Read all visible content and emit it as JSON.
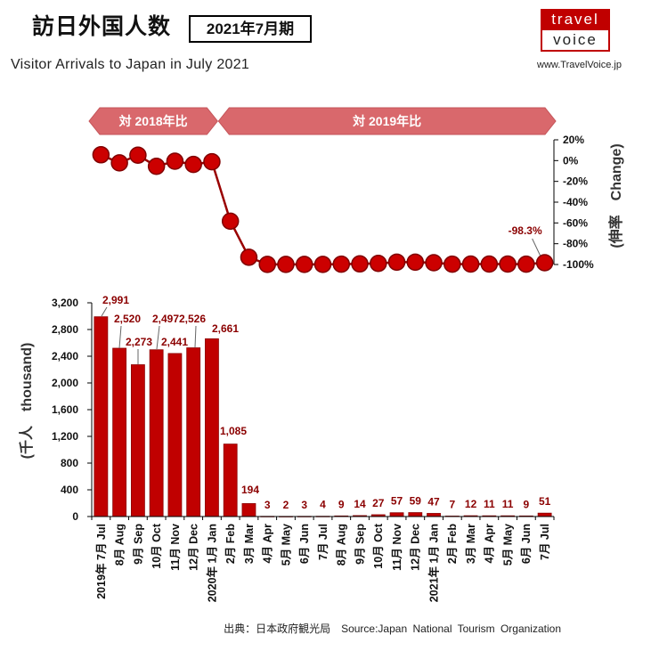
{
  "header": {
    "title": "訪日外国人数",
    "period_badge": "2021年7月期",
    "subtitle": "Visitor Arrivals to Japan in July 2021",
    "site_url": "www.TravelVoice.jp"
  },
  "logo": {
    "top": "travel",
    "bottom": "voice",
    "icon": "travel-voice-logo"
  },
  "colors": {
    "bar": "#c00000",
    "bar_border": "#8b0000",
    "line": "#990000",
    "marker": "#cc0000",
    "marker_border": "#800000",
    "data_label": "#8b0000",
    "period_arrow": "#d9686c",
    "logo_red": "#c00000"
  },
  "chart_data": [
    {
      "type": "line",
      "ylabel": "(伸率　Change)",
      "axis_side": "right",
      "ylim": [
        -100,
        20
      ],
      "yticks": [
        20,
        0,
        -20,
        -40,
        -60,
        -80,
        -100
      ],
      "ytick_labels": [
        "20%",
        "0%",
        "-20%",
        "-40%",
        "-60%",
        "-80%",
        "-100%"
      ],
      "grid": false,
      "categories": [
        "2019年 7月 Jul",
        "8月 Aug",
        "9月 Sep",
        "10月 Oct",
        "11月 Nov",
        "12月 Dec",
        "2020年 1月 Jan",
        "2月 Feb",
        "3月 Mar",
        "4月 Apr",
        "5月 May",
        "6月 Jun",
        "7月 Jul",
        "8月 Aug",
        "9月 Sep",
        "10月 Oct",
        "11月 Nov",
        "12月 Dec",
        "2021年 1月 Jan",
        "2月 Feb",
        "3月 Mar",
        "4月 Apr",
        "5月 May",
        "6月 Jun",
        "7月 Jul"
      ],
      "periods": [
        {
          "label": "対 2018年比",
          "from_index": 0,
          "to_index": 6
        },
        {
          "label": "対 2019年比",
          "from_index": 7,
          "to_index": 24
        }
      ],
      "series": [
        {
          "values": [
            5.6,
            -2.2,
            5.2,
            -5.5,
            -0.6,
            -3.7,
            -1.1,
            -58.3,
            -93.0,
            -99.9,
            -99.9,
            -99.9,
            -99.9,
            -99.7,
            -99.4,
            -98.9,
            -97.7,
            -97.7,
            -98.3,
            -99.7,
            -99.6,
            -99.6,
            -99.6,
            -99.7,
            -98.3
          ]
        }
      ],
      "annotations": [
        {
          "text": "-98.3%",
          "index": 24
        }
      ]
    },
    {
      "type": "bar",
      "ylabel": "(千人　thousand)",
      "ylim": [
        0,
        3200
      ],
      "yticks": [
        0,
        400,
        800,
        1200,
        1600,
        2000,
        2400,
        2800,
        3200
      ],
      "ytick_labels": [
        "0",
        "400",
        "800",
        "1,200",
        "1,600",
        "2,000",
        "2,400",
        "2,800",
        "3,200"
      ],
      "grid": false,
      "categories": [
        "2019年 7月 Jul",
        "8月 Aug",
        "9月 Sep",
        "10月 Oct",
        "11月 Nov",
        "12月 Dec",
        "2020年 1月 Jan",
        "2月 Feb",
        "3月 Mar",
        "4月 Apr",
        "5月 May",
        "6月 Jun",
        "7月 Jul",
        "8月 Aug",
        "9月 Sep",
        "10月 Oct",
        "11月 Nov",
        "12月 Dec",
        "2021年 1月 Jan",
        "2月 Feb",
        "3月 Mar",
        "4月 Apr",
        "5月 May",
        "6月 Jun",
        "7月 Jul"
      ],
      "values": [
        2991,
        2520,
        2273,
        2497,
        2441,
        2526,
        2661,
        1085,
        194,
        3,
        2,
        3,
        4,
        9,
        14,
        27,
        57,
        59,
        47,
        7,
        12,
        11,
        11,
        9,
        51
      ],
      "data_labels": [
        "2,991",
        "2,520",
        "2,273",
        "2,497",
        "2,441",
        "2,526",
        "2,661",
        "1,085",
        "194",
        "3",
        "2",
        "3",
        "4",
        "9",
        "14",
        "27",
        "57",
        "59",
        "47",
        "7",
        "12",
        "11",
        "11",
        "9",
        "51"
      ]
    }
  ],
  "footer": {
    "source": "出典：日本政府観光局　Source:Japan National Tourism Organization"
  }
}
